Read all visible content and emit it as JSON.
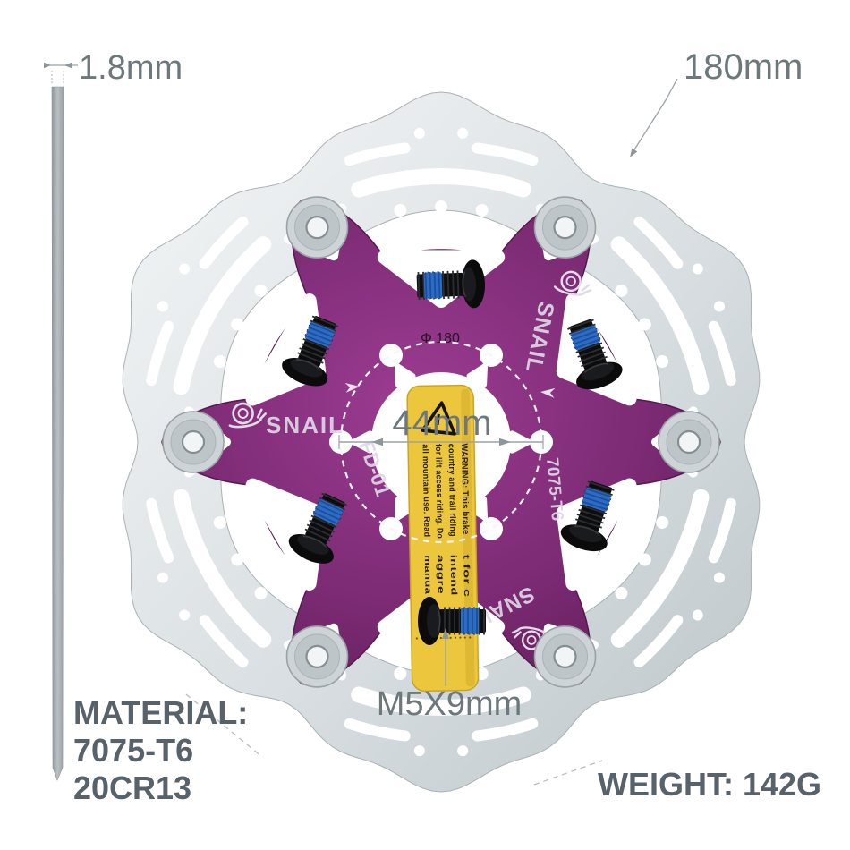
{
  "dimensions": {
    "thickness": "1.8mm",
    "outer_diameter": "180mm",
    "center_span": "44mm",
    "bolt_spec": "M5X9mm"
  },
  "specs": {
    "material_label": "MATERIAL:",
    "material_alloy": "7075-T6",
    "material_steel": "20CR13",
    "weight": "WEIGHT: 142G"
  },
  "rotor": {
    "brand": "SNAIL",
    "model": "FD-01",
    "spider_alloy_mark": "7075-T6",
    "diameter_mark": "Φ 180",
    "warning_sticker": {
      "heading_lines": [
        "WARNING: This brake",
        "country and trail riding",
        "for lift access riding. Do",
        "all mountain use. Read"
      ],
      "footer_lines": [
        "t for c",
        "intend",
        "aggre",
        "manua"
      ]
    }
  },
  "colors": {
    "spider_purple": "#7c2b74",
    "sticker_yellow": "#ecc73e",
    "threadlock_blue": "#2e6cc4",
    "steel_light": "#f0f2f3",
    "steel_dark": "#c6cdd0",
    "annotation_gray": "#9aa3a7",
    "label_gray": "#6d787c",
    "spec_text": "#57626a"
  }
}
